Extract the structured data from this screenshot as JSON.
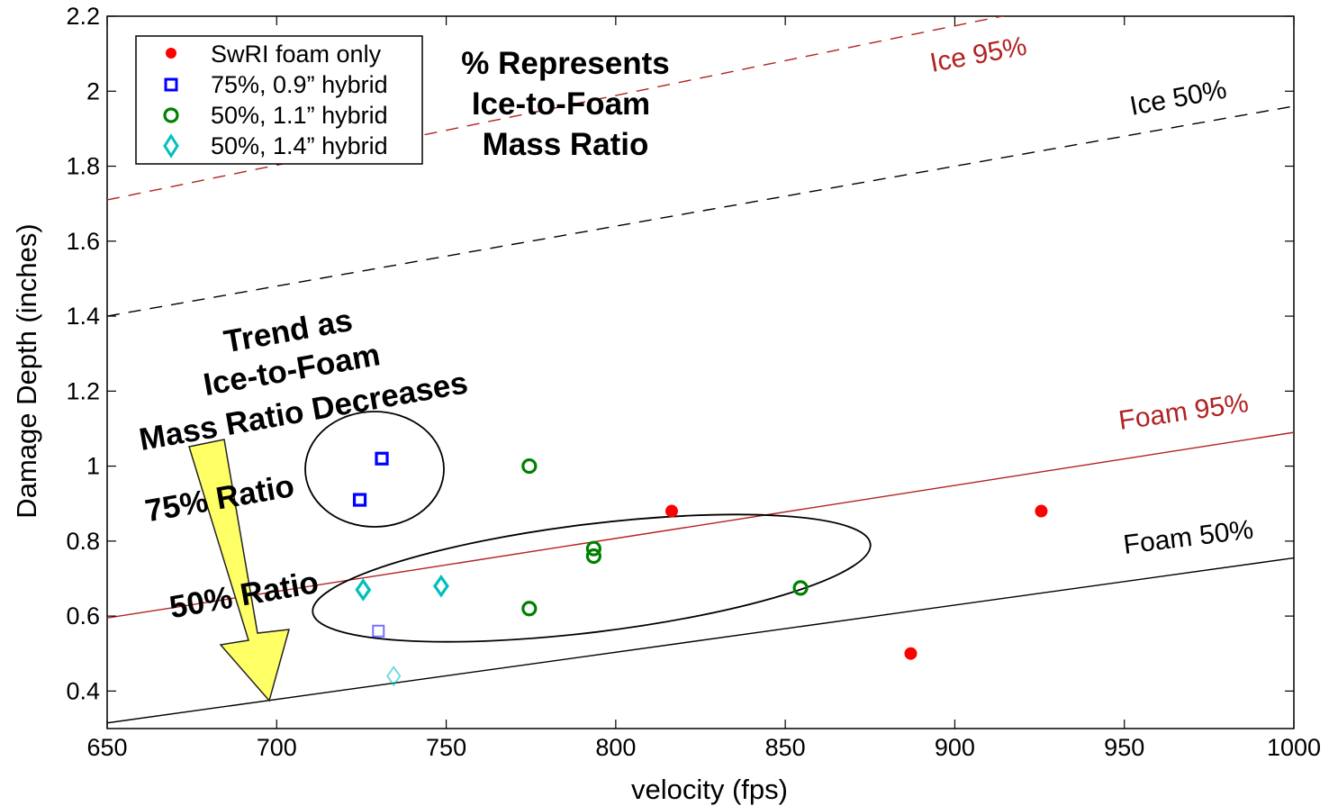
{
  "chart_data": {
    "type": "scatter",
    "xlabel": "velocity (fps)",
    "ylabel": "Damage Depth (inches)",
    "xlim": [
      650,
      1000
    ],
    "ylim": [
      0.3,
      2.2
    ],
    "x_ticks": [
      "650",
      "700",
      "750",
      "800",
      "850",
      "900",
      "950",
      "1000"
    ],
    "y_ticks": [
      "0.4",
      "0.6",
      "0.8",
      "1",
      "1.2",
      "1.4",
      "1.6",
      "1.8",
      "2",
      "2.2"
    ],
    "grid": false,
    "legend_position": "top-left",
    "series": [
      {
        "name": "SwRI foam only",
        "marker": "filled-circle",
        "color": "#ff0000",
        "points": [
          [
            816.5,
            0.88
          ],
          [
            925.5,
            0.88
          ],
          [
            887,
            0.5
          ]
        ]
      },
      {
        "name": "75%, 0.9” hybrid",
        "marker": "square",
        "color": "#0000ff",
        "points": [
          [
            731,
            1.02
          ],
          [
            724.5,
            0.91
          ]
        ],
        "faded_points": [
          [
            730,
            0.56
          ]
        ]
      },
      {
        "name": "50%, 1.1” hybrid",
        "marker": "circle",
        "color": "#008000",
        "points": [
          [
            774.5,
            1.0
          ],
          [
            793.5,
            0.78
          ],
          [
            793.5,
            0.76
          ],
          [
            774.5,
            0.62
          ],
          [
            854.5,
            0.675
          ]
        ]
      },
      {
        "name": "50%, 1.4” hybrid",
        "marker": "diamond",
        "color": "#00bfbf",
        "points": [
          [
            725.5,
            0.67
          ],
          [
            748.5,
            0.68
          ]
        ],
        "faded_points": [
          [
            734.5,
            0.44
          ]
        ]
      }
    ],
    "reference_lines": [
      {
        "label": "Ice 95%",
        "color": "#b22222",
        "style": "dashed",
        "x": [
          650,
          1000
        ],
        "y": [
          1.71,
          2.36
        ]
      },
      {
        "label": "Ice 50%",
        "color": "#000000",
        "style": "dashed",
        "x": [
          650,
          1000
        ],
        "y": [
          1.4,
          1.96
        ]
      },
      {
        "label": "Foam 95%",
        "color": "#b22222",
        "style": "solid",
        "x": [
          650,
          1000
        ],
        "y": [
          0.595,
          1.09
        ]
      },
      {
        "label": "Foam 50%",
        "color": "#000000",
        "style": "solid",
        "x": [
          650,
          1000
        ],
        "y": [
          0.315,
          0.755
        ]
      }
    ],
    "annotations": {
      "mass_ratio_note": [
        "% Represents",
        "Ice-to-Foam",
        "Mass Ratio"
      ],
      "trend_note": [
        "Trend as",
        "Ice-to-Foam",
        "Mass Ratio Decreases"
      ],
      "ratio_75": "75% Ratio",
      "ratio_50": "50% Ratio"
    }
  },
  "colors": {
    "ice95": "#b22222",
    "foam95": "#b22222",
    "arrow_fill": "#ffff66",
    "axis": "#000000"
  }
}
